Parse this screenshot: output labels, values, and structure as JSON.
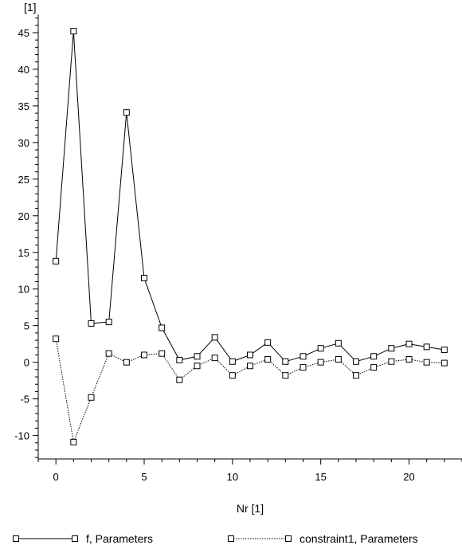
{
  "chart_data": {
    "type": "line",
    "xlabel": "Nr [1]",
    "ylabel": "[1]",
    "xlim": [
      -1,
      23
    ],
    "ylim": [
      -13.2,
      47.5
    ],
    "x_ticks": [
      "0",
      "5",
      "10",
      "15",
      "20"
    ],
    "y_ticks": [
      "-10",
      "-5",
      "0",
      "5",
      "10",
      "15",
      "20",
      "25",
      "30",
      "35",
      "40",
      "45"
    ],
    "grid": false,
    "legend_position": "bottom",
    "x": [
      0,
      1,
      2,
      3,
      4,
      5,
      6,
      7,
      8,
      9,
      10,
      11,
      12,
      13,
      14,
      15,
      16,
      17,
      18,
      19,
      20,
      21,
      22
    ],
    "series": [
      {
        "name": "f, Parameters",
        "style": "solid",
        "values": [
          13.8,
          45.2,
          5.3,
          5.5,
          34.1,
          11.5,
          4.7,
          0.3,
          0.8,
          3.4,
          0.1,
          1.0,
          2.7,
          0.1,
          0.8,
          1.9,
          2.6,
          0.1,
          0.8,
          1.9,
          2.5,
          2.1,
          1.7
        ]
      },
      {
        "name": "constraint1, Parameters",
        "style": "dotted",
        "values": [
          3.2,
          -10.9,
          -4.8,
          1.2,
          0.0,
          1.0,
          1.2,
          -2.4,
          -0.5,
          0.6,
          -1.8,
          -0.5,
          0.4,
          -1.8,
          -0.7,
          0.0,
          0.4,
          -1.8,
          -0.7,
          0.1,
          0.4,
          0.0,
          -0.1
        ]
      }
    ]
  }
}
